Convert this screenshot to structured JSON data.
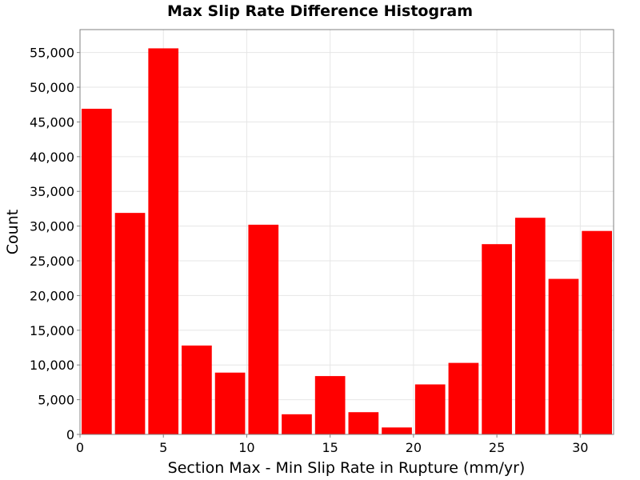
{
  "chart_data": {
    "type": "bar",
    "title": "Max Slip Rate Difference Histogram",
    "xlabel": "Section Max - Min Slip Rate in Rupture (mm/yr)",
    "ylabel": "Count",
    "xlim": [
      0,
      32
    ],
    "ylim": [
      0,
      58300
    ],
    "bin_width": 2,
    "x": [
      1,
      3,
      5,
      7,
      9,
      11,
      13,
      15,
      17,
      19,
      21,
      23,
      25,
      27,
      29,
      31
    ],
    "values": [
      46900,
      31900,
      55600,
      12800,
      8900,
      30200,
      2900,
      8400,
      3200,
      1000,
      7200,
      10300,
      27400,
      31200,
      22400,
      29300
    ],
    "x_ticks": [
      0,
      5,
      10,
      15,
      20,
      25,
      30
    ],
    "x_tick_labels": [
      "0",
      "5",
      "10",
      "15",
      "20",
      "25",
      "30"
    ],
    "y_ticks": [
      0,
      5000,
      10000,
      15000,
      20000,
      25000,
      30000,
      35000,
      40000,
      45000,
      50000,
      55000
    ],
    "y_tick_labels": [
      "0",
      "5,000",
      "10,000",
      "15,000",
      "20,000",
      "25,000",
      "30,000",
      "35,000",
      "40,000",
      "45,000",
      "50,000",
      "55,000"
    ],
    "grid": true,
    "legend": "none",
    "colors": {
      "bar": "#ff0000",
      "grid": "#e6e6e6",
      "axis": "#808080"
    }
  }
}
